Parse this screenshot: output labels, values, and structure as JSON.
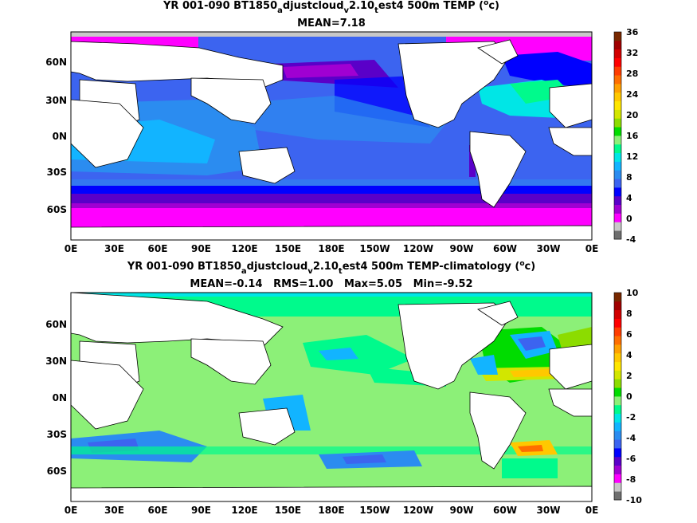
{
  "chart_data": [
    {
      "type": "heatmap",
      "title_parts": [
        "YR 001-090 BT1850",
        "a",
        "djustcloud",
        "v",
        "2.10",
        "t",
        "est4 500m TEMP (",
        "o",
        "c)"
      ],
      "subtitle": "MEAN=7.18",
      "x_ticks": [
        "0E",
        "30E",
        "60E",
        "90E",
        "120E",
        "150E",
        "180E",
        "150W",
        "120W",
        "90W",
        "60W",
        "30W",
        "0E"
      ],
      "y_ticks": [
        "60N",
        "30N",
        "0N",
        "30S",
        "60S"
      ],
      "colorbar": {
        "ticks": [
          "36",
          "32",
          "28",
          "24",
          "20",
          "16",
          "12",
          "8",
          "4",
          "0",
          "-4"
        ],
        "colors": [
          "#6e6e6e",
          "#c8c8c8",
          "#ff00ff",
          "#a000d2",
          "#5a00c8",
          "#0000ff",
          "#3c64f0",
          "#2b8cf0",
          "#12b4ff",
          "#00e6e6",
          "#00fa8c",
          "#8cf078",
          "#00dc00",
          "#8cdc00",
          "#d2e600",
          "#ffe600",
          "#ffc800",
          "#ffa000",
          "#ff6e00",
          "#ff3c00",
          "#ff0000",
          "#d20000",
          "#a00000",
          "#782800"
        ]
      }
    },
    {
      "type": "heatmap",
      "title_parts": [
        "YR 001-090 BT1850",
        "a",
        "djustcloud",
        "v",
        "2.10",
        "t",
        "est4 500m TEMP-climatology (",
        "o",
        "c)"
      ],
      "subtitle": "MEAN=-0.14   RMS=1.00   Max=5.05   Min=-9.52",
      "x_ticks": [
        "0E",
        "30E",
        "60E",
        "90E",
        "120E",
        "150E",
        "180E",
        "150W",
        "120W",
        "90W",
        "60W",
        "30W",
        "0E"
      ],
      "y_ticks": [
        "60N",
        "30N",
        "0N",
        "30S",
        "60S"
      ],
      "colorbar": {
        "ticks": [
          "10",
          "8",
          "6",
          "4",
          "2",
          "0",
          "-2",
          "-4",
          "-6",
          "-8",
          "-10"
        ],
        "colors": [
          "#6e6e6e",
          "#c8c8c8",
          "#ff00ff",
          "#a000d2",
          "#5a00c8",
          "#0000ff",
          "#3c64f0",
          "#2b8cf0",
          "#12b4ff",
          "#00e6e6",
          "#00fa8c",
          "#8cf078",
          "#00dc00",
          "#8cdc00",
          "#d2e600",
          "#ffe600",
          "#ffc800",
          "#ffa000",
          "#ff6e00",
          "#ff3c00",
          "#ff0000",
          "#d20000",
          "#a00000",
          "#782800"
        ]
      }
    }
  ]
}
